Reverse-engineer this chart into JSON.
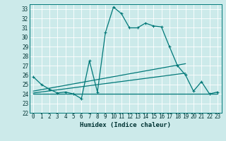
{
  "xlabel": "Humidex (Indice chaleur)",
  "bg_color": "#cceaea",
  "grid_color": "#ffffff",
  "line_color": "#007878",
  "xlim": [
    -0.5,
    23.5
  ],
  "ylim": [
    22,
    33.5
  ],
  "yticks": [
    22,
    23,
    24,
    25,
    26,
    27,
    28,
    29,
    30,
    31,
    32,
    33
  ],
  "xticks": [
    0,
    1,
    2,
    3,
    4,
    5,
    6,
    7,
    8,
    9,
    10,
    11,
    12,
    13,
    14,
    15,
    16,
    17,
    18,
    19,
    20,
    21,
    22,
    23
  ],
  "line1_x": [
    0,
    1,
    2,
    3,
    4,
    5,
    6,
    7,
    8,
    9,
    10,
    11,
    12,
    13,
    14,
    15,
    16,
    17,
    18,
    19,
    20,
    21,
    22,
    23
  ],
  "line1_y": [
    25.8,
    25.0,
    24.5,
    24.1,
    24.2,
    24.0,
    23.5,
    27.5,
    24.2,
    30.5,
    33.2,
    32.5,
    31.0,
    31.0,
    31.5,
    31.2,
    31.1,
    29.0,
    27.0,
    26.0,
    24.3,
    25.3,
    24.0,
    24.2
  ],
  "line2_x": [
    0,
    19
  ],
  "line2_y": [
    24.3,
    27.2
  ],
  "line3_x": [
    0,
    19
  ],
  "line3_y": [
    24.1,
    26.2
  ],
  "line4_x": [
    0,
    23
  ],
  "line4_y": [
    24.0,
    24.0
  ],
  "marker_x": [
    0,
    1,
    2,
    3,
    4,
    5,
    6,
    7,
    8,
    9,
    10,
    11,
    12,
    13,
    14,
    15,
    16,
    17,
    18,
    19,
    20,
    21,
    22,
    23
  ],
  "marker_y": [
    25.8,
    25.0,
    24.5,
    24.1,
    24.2,
    24.0,
    23.5,
    27.5,
    24.2,
    30.5,
    33.2,
    32.5,
    31.0,
    31.0,
    31.5,
    31.2,
    31.1,
    29.0,
    27.0,
    26.0,
    24.3,
    25.3,
    24.0,
    24.2
  ]
}
